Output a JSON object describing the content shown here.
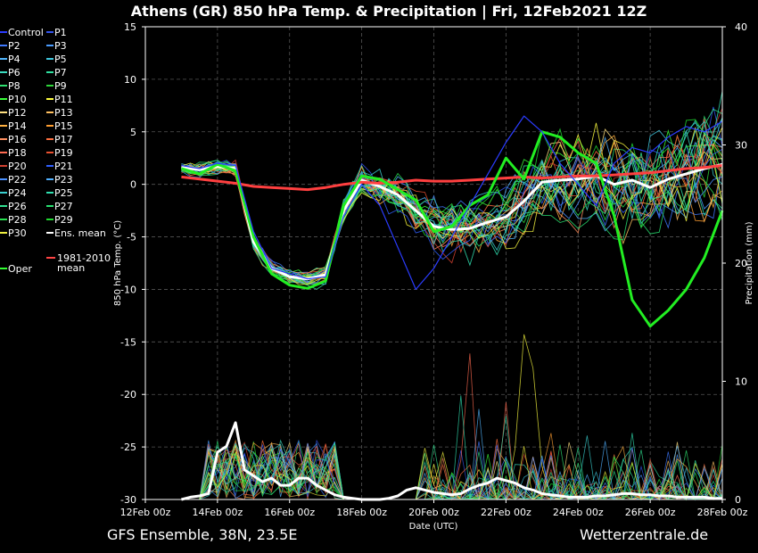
{
  "title": "Athens  (GR)  850 hPa Temp. & Precipitation | Fri, 12Feb2021 12Z",
  "footer_left": "GFS Ensemble, 38N, 23.5E",
  "footer_right": "Wetterzentrale.de",
  "chart_data": {
    "type": "line",
    "title": "Athens  (GR)  850 hPa Temp. & Precipitation | Fri, 12Feb2021 12Z",
    "xlabel": "Date (UTC)",
    "ylabel": "850 hPa Temp. (°C)",
    "y2label": "Precipitation (mm)",
    "ylim": [
      -30,
      15
    ],
    "y2lim": [
      0,
      40
    ],
    "x_range_hours": [
      0,
      384
    ],
    "x_step_hours": 6,
    "x_ticks": [
      "12Feb 00z",
      "14Feb 00z",
      "16Feb 00z",
      "18Feb 00z",
      "20Feb 00z",
      "22Feb 00z",
      "24Feb 00z",
      "26Feb 00z",
      "28Feb 00z"
    ],
    "y_ticks": [
      15,
      10,
      5,
      0,
      -5,
      -10,
      -15,
      -20,
      -25,
      -30
    ],
    "y2_ticks": [
      40,
      30,
      20,
      10,
      0
    ],
    "grid": true,
    "legend_position": "left",
    "legend": [
      {
        "name": "Control",
        "color": "#2b3cff"
      },
      {
        "name": "P1",
        "color": "#3355ee"
      },
      {
        "name": "P2",
        "color": "#3f79ff"
      },
      {
        "name": "P3",
        "color": "#4a9cff"
      },
      {
        "name": "P4",
        "color": "#52b6ff"
      },
      {
        "name": "P5",
        "color": "#3fc8e0"
      },
      {
        "name": "P6",
        "color": "#3adcc0"
      },
      {
        "name": "P7",
        "color": "#2fe0a0"
      },
      {
        "name": "P8",
        "color": "#2ee070"
      },
      {
        "name": "P9",
        "color": "#2ed63a"
      },
      {
        "name": "P10",
        "color": "#3aff3a"
      },
      {
        "name": "P11",
        "color": "#ffff40"
      },
      {
        "name": "P12",
        "color": "#ffe080"
      },
      {
        "name": "P13",
        "color": "#ffc060"
      },
      {
        "name": "P14",
        "color": "#ffb040"
      },
      {
        "name": "P15",
        "color": "#ff9e30"
      },
      {
        "name": "P16",
        "color": "#ff9060"
      },
      {
        "name": "P17",
        "color": "#ff7040"
      },
      {
        "name": "P18",
        "color": "#ff6a50"
      },
      {
        "name": "P19",
        "color": "#e85030"
      },
      {
        "name": "P20",
        "color": "#d04030"
      },
      {
        "name": "P21",
        "color": "#3060ff"
      },
      {
        "name": "P22",
        "color": "#4a90ff"
      },
      {
        "name": "P23",
        "color": "#50b0ff"
      },
      {
        "name": "P24",
        "color": "#3ad0d0"
      },
      {
        "name": "P25",
        "color": "#30e0b0"
      },
      {
        "name": "P26",
        "color": "#30e090"
      },
      {
        "name": "P27",
        "color": "#28e070"
      },
      {
        "name": "P28",
        "color": "#28e050"
      },
      {
        "name": "P29",
        "color": "#20d830"
      },
      {
        "name": "P30",
        "color": "#f0f040"
      },
      {
        "name": "Ens. mean",
        "color": "#ffffff"
      },
      {
        "name": "1981-2010 mean",
        "color": "#ff4444"
      },
      {
        "name": "Oper",
        "color": "#33ff33"
      }
    ],
    "series": [
      {
        "name": "Ens. mean",
        "axis": "temp",
        "style": "thick",
        "color": "#ffffff",
        "x": [
          24,
          36,
          48,
          60,
          72,
          84,
          96,
          108,
          120,
          132,
          144,
          156,
          168,
          180,
          192,
          204,
          216,
          228,
          240,
          252,
          264,
          276,
          288,
          300,
          312,
          324,
          336,
          348,
          360,
          372,
          384
        ],
        "y": [
          1.6,
          1.4,
          1.7,
          1.5,
          -5.5,
          -8.0,
          -8.8,
          -9.0,
          -8.6,
          -2.5,
          0.4,
          -0.2,
          -1.0,
          -2.5,
          -4.0,
          -4.3,
          -4.2,
          -3.6,
          -3.1,
          -1.6,
          0.2,
          0.4,
          0.5,
          0.8,
          0.0,
          0.4,
          -0.3,
          0.5,
          1.0,
          1.5,
          1.9
        ]
      },
      {
        "name": "1981-2010 mean",
        "axis": "temp",
        "style": "thick",
        "color": "#ff4040",
        "x": [
          24,
          36,
          48,
          60,
          72,
          84,
          96,
          108,
          120,
          132,
          144,
          156,
          168,
          180,
          192,
          204,
          216,
          228,
          240,
          252,
          264,
          276,
          288,
          300,
          312,
          324,
          336,
          348,
          360,
          372,
          384
        ],
        "y": [
          0.7,
          0.5,
          0.3,
          0.1,
          -0.2,
          -0.3,
          -0.4,
          -0.5,
          -0.3,
          0.0,
          0.2,
          0.1,
          0.2,
          0.4,
          0.3,
          0.3,
          0.4,
          0.5,
          0.6,
          0.7,
          0.6,
          0.7,
          0.8,
          0.8,
          0.9,
          1.0,
          1.1,
          1.3,
          1.5,
          1.6,
          1.8
        ]
      },
      {
        "name": "Oper",
        "axis": "temp",
        "style": "thick",
        "color": "#22ee22",
        "x": [
          24,
          36,
          48,
          60,
          72,
          84,
          96,
          108,
          120,
          132,
          144,
          156,
          168,
          180,
          192,
          204,
          216,
          228,
          240,
          252,
          264,
          276,
          288,
          300,
          312,
          324,
          336,
          348,
          360,
          372,
          384
        ],
        "y": [
          1.5,
          1.0,
          1.9,
          1.3,
          -5.0,
          -8.5,
          -9.6,
          -9.9,
          -9.2,
          -2.0,
          0.8,
          0.5,
          -0.5,
          -1.5,
          -4.5,
          -4.0,
          -2.0,
          -1.0,
          2.5,
          0.5,
          5.0,
          4.5,
          3.0,
          2.0,
          -3.0,
          -11.0,
          -13.5,
          -12.0,
          -10.0,
          -7.0,
          -2.5
        ]
      },
      {
        "name": "Control",
        "axis": "temp",
        "style": "thin",
        "color": "#2b3cff",
        "x": [
          24,
          36,
          48,
          60,
          72,
          84,
          96,
          108,
          120,
          132,
          144,
          156,
          168,
          180,
          192,
          204,
          216,
          228,
          240,
          252,
          264,
          276,
          288,
          300,
          312,
          324,
          336,
          348,
          360,
          372,
          384
        ],
        "y": [
          1.8,
          1.5,
          2.0,
          1.8,
          -4.5,
          -8.0,
          -8.5,
          -9.0,
          -8.8,
          -3.0,
          0.0,
          -2.0,
          -6.0,
          -10.0,
          -8.0,
          -5.0,
          -2.0,
          1.0,
          4.0,
          6.5,
          5.0,
          2.0,
          0.0,
          -2.0,
          2.0,
          3.5,
          3.0,
          4.5,
          5.5,
          5.0,
          6.0
        ]
      },
      {
        "name": "Ens. mean precip",
        "axis": "precip",
        "style": "thick",
        "color": "#ffffff",
        "x": [
          24,
          30,
          36,
          42,
          48,
          54,
          60,
          66,
          72,
          78,
          84,
          90,
          96,
          102,
          108,
          114,
          120,
          126,
          132,
          138,
          144,
          150,
          156,
          162,
          168,
          174,
          180,
          186,
          192,
          198,
          204,
          210,
          216,
          222,
          228,
          234,
          240,
          246,
          252,
          258,
          264,
          270,
          276,
          282,
          288,
          294,
          300,
          306,
          312,
          318,
          324,
          330,
          336,
          342,
          348,
          354,
          360,
          366,
          372,
          378,
          384
        ],
        "y": [
          0.0,
          0.2,
          0.3,
          0.5,
          4.0,
          4.5,
          6.5,
          2.5,
          2.0,
          1.5,
          1.8,
          1.2,
          1.2,
          1.8,
          1.8,
          1.2,
          0.8,
          0.4,
          0.2,
          0.1,
          0.0,
          0.0,
          0.0,
          0.1,
          0.3,
          0.8,
          1.0,
          0.8,
          0.6,
          0.5,
          0.4,
          0.5,
          0.9,
          1.2,
          1.4,
          1.8,
          1.6,
          1.4,
          1.0,
          0.8,
          0.5,
          0.4,
          0.3,
          0.2,
          0.2,
          0.2,
          0.3,
          0.3,
          0.4,
          0.5,
          0.5,
          0.4,
          0.4,
          0.3,
          0.3,
          0.2,
          0.2,
          0.2,
          0.2,
          0.1,
          0.1
        ]
      }
    ]
  }
}
